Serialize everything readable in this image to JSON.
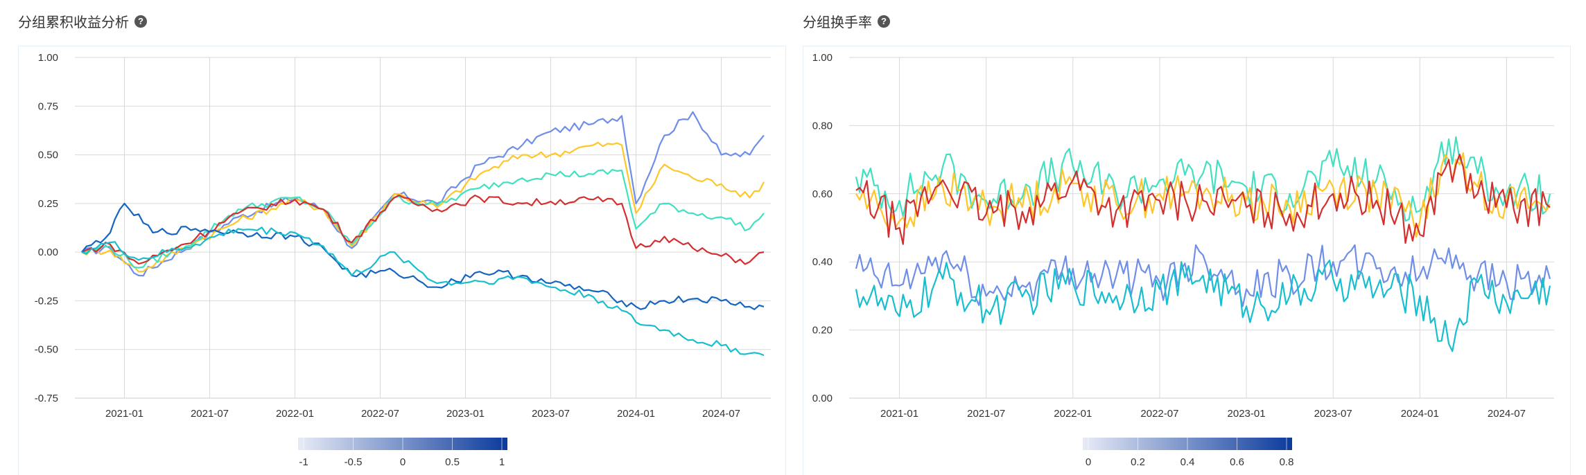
{
  "left_title": "分组累积收益分析",
  "right_title": "分组换手率",
  "colors": {
    "g1": "#1565c0",
    "g2": "#17becf",
    "g3": "#d32f2f",
    "g4": "#40e0c0",
    "g5": "#ffc629",
    "g6": "#6f8ee8",
    "colorbar_start": "#e8ebf6",
    "colorbar_end": "#0a3a9c"
  },
  "chart_data": [
    {
      "type": "line",
      "title": "分组累积收益分析",
      "xtick_labels": [
        "2021-01",
        "2021-07",
        "2022-01",
        "2022-07",
        "2023-01",
        "2023-07",
        "2024-01",
        "2024-07"
      ],
      "ytick_labels": [
        "1.00",
        "0.75",
        "0.50",
        "0.25",
        "0.00",
        "-0.25",
        "-0.50",
        "-0.75"
      ],
      "ylim": [
        -0.75,
        1.0
      ],
      "x_range": [
        "2020-10",
        "2024-10"
      ],
      "grid": true,
      "series": [
        {
          "color": "#6f8ee8",
          "x": [
            "2020-10",
            "2020-12",
            "2021-02",
            "2021-06",
            "2021-09",
            "2022-01",
            "2022-03",
            "2022-05",
            "2022-08",
            "2022-11",
            "2023-02",
            "2023-05",
            "2023-07",
            "2023-10",
            "2023-12",
            "2024-01",
            "2024-03",
            "2024-05",
            "2024-07",
            "2024-09",
            "2024-10"
          ],
          "values": [
            0.0,
            0.02,
            -0.12,
            0.05,
            0.18,
            0.28,
            0.22,
            0.02,
            0.3,
            0.25,
            0.45,
            0.55,
            0.62,
            0.66,
            0.7,
            0.25,
            0.6,
            0.72,
            0.5,
            0.5,
            0.6
          ]
        },
        {
          "color": "#ffc629",
          "x": [
            "2020-10",
            "2020-12",
            "2021-02",
            "2021-06",
            "2021-09",
            "2022-01",
            "2022-03",
            "2022-05",
            "2022-08",
            "2022-11",
            "2023-02",
            "2023-05",
            "2023-07",
            "2023-10",
            "2023-12",
            "2024-01",
            "2024-03",
            "2024-05",
            "2024-07",
            "2024-09",
            "2024-10"
          ],
          "values": [
            0.0,
            0.01,
            -0.1,
            0.05,
            0.16,
            0.27,
            0.22,
            0.03,
            0.3,
            0.23,
            0.4,
            0.5,
            0.5,
            0.55,
            0.55,
            0.2,
            0.45,
            0.38,
            0.35,
            0.28,
            0.36
          ]
        },
        {
          "color": "#40e0c0",
          "x": [
            "2020-10",
            "2020-12",
            "2021-02",
            "2021-06",
            "2021-09",
            "2022-01",
            "2022-03",
            "2022-05",
            "2022-08",
            "2022-11",
            "2023-02",
            "2023-05",
            "2023-07",
            "2023-10",
            "2023-12",
            "2024-01",
            "2024-03",
            "2024-05",
            "2024-07",
            "2024-09",
            "2024-10"
          ],
          "values": [
            0.0,
            0.03,
            -0.08,
            0.06,
            0.22,
            0.28,
            0.22,
            0.04,
            0.28,
            0.24,
            0.33,
            0.38,
            0.4,
            0.4,
            0.42,
            0.12,
            0.25,
            0.2,
            0.18,
            0.12,
            0.2
          ]
        },
        {
          "color": "#d32f2f",
          "x": [
            "2020-10",
            "2020-12",
            "2021-02",
            "2021-06",
            "2021-09",
            "2022-01",
            "2022-03",
            "2022-05",
            "2022-08",
            "2022-11",
            "2023-02",
            "2023-05",
            "2023-07",
            "2023-10",
            "2023-12",
            "2024-01",
            "2024-03",
            "2024-05",
            "2024-07",
            "2024-09",
            "2024-10"
          ],
          "values": [
            0.0,
            0.04,
            -0.06,
            0.07,
            0.2,
            0.27,
            0.22,
            0.05,
            0.28,
            0.22,
            0.28,
            0.25,
            0.26,
            0.27,
            0.25,
            0.02,
            0.08,
            0.02,
            -0.02,
            -0.05,
            0.0
          ]
        },
        {
          "color": "#1565c0",
          "x": [
            "2020-10",
            "2020-12",
            "2021-01",
            "2021-03",
            "2021-06",
            "2021-09",
            "2022-01",
            "2022-03",
            "2022-05",
            "2022-08",
            "2022-11",
            "2023-02",
            "2023-05",
            "2023-07",
            "2023-10",
            "2023-12",
            "2024-01",
            "2024-03",
            "2024-05",
            "2024-07",
            "2024-09",
            "2024-10"
          ],
          "values": [
            0.0,
            0.1,
            0.25,
            0.1,
            0.12,
            0.1,
            0.08,
            0.02,
            -0.12,
            -0.1,
            -0.18,
            -0.1,
            -0.12,
            -0.16,
            -0.2,
            -0.25,
            -0.28,
            -0.25,
            -0.24,
            -0.25,
            -0.28,
            -0.28
          ]
        },
        {
          "color": "#17becf",
          "x": [
            "2020-10",
            "2020-12",
            "2021-02",
            "2021-06",
            "2021-09",
            "2022-01",
            "2022-03",
            "2022-05",
            "2022-08",
            "2022-11",
            "2023-02",
            "2023-05",
            "2023-07",
            "2023-10",
            "2023-12",
            "2024-01",
            "2024-03",
            "2024-05",
            "2024-07",
            "2024-09",
            "2024-10"
          ],
          "values": [
            0.0,
            0.05,
            -0.04,
            0.04,
            0.12,
            0.1,
            0.03,
            -0.12,
            0.0,
            -0.16,
            -0.15,
            -0.13,
            -0.18,
            -0.23,
            -0.3,
            -0.36,
            -0.4,
            -0.45,
            -0.48,
            -0.52,
            -0.53
          ]
        }
      ]
    },
    {
      "type": "line",
      "title": "分组换手率",
      "xtick_labels": [
        "2021-01",
        "2021-07",
        "2022-01",
        "2022-07",
        "2023-01",
        "2023-07",
        "2024-01",
        "2024-07"
      ],
      "ytick_labels": [
        "1.00",
        "0.80",
        "0.60",
        "0.40",
        "0.20",
        "0.00"
      ],
      "ylim": [
        0,
        1.0
      ],
      "x_range": [
        "2020-10",
        "2024-10"
      ],
      "grid": true,
      "series": [
        {
          "color": "#40e0c0",
          "x": [
            "2020-10",
            "2021-01",
            "2021-04",
            "2021-07",
            "2021-10",
            "2022-01",
            "2022-04",
            "2022-07",
            "2022-10",
            "2023-01",
            "2023-04",
            "2023-07",
            "2023-10",
            "2024-01",
            "2024-03",
            "2024-05",
            "2024-07",
            "2024-10"
          ],
          "values": [
            0.65,
            0.58,
            0.68,
            0.58,
            0.62,
            0.68,
            0.6,
            0.64,
            0.66,
            0.62,
            0.6,
            0.68,
            0.64,
            0.55,
            0.76,
            0.66,
            0.6,
            0.6
          ]
        },
        {
          "color": "#ffc629",
          "x": [
            "2020-10",
            "2021-01",
            "2021-04",
            "2021-07",
            "2021-10",
            "2022-01",
            "2022-04",
            "2022-07",
            "2022-10",
            "2023-01",
            "2023-04",
            "2023-07",
            "2023-10",
            "2024-01",
            "2024-03",
            "2024-05",
            "2024-07",
            "2024-10"
          ],
          "values": [
            0.6,
            0.52,
            0.62,
            0.56,
            0.58,
            0.63,
            0.57,
            0.6,
            0.6,
            0.58,
            0.56,
            0.62,
            0.6,
            0.52,
            0.7,
            0.62,
            0.58,
            0.57
          ]
        },
        {
          "color": "#d32f2f",
          "x": [
            "2020-10",
            "2021-01",
            "2021-04",
            "2021-07",
            "2021-10",
            "2022-01",
            "2022-04",
            "2022-07",
            "2022-10",
            "2023-01",
            "2023-04",
            "2023-07",
            "2023-10",
            "2024-01",
            "2024-03",
            "2024-05",
            "2024-07",
            "2024-10"
          ],
          "values": [
            0.61,
            0.5,
            0.64,
            0.54,
            0.56,
            0.64,
            0.55,
            0.58,
            0.58,
            0.56,
            0.54,
            0.6,
            0.58,
            0.48,
            0.7,
            0.6,
            0.56,
            0.56
          ]
        },
        {
          "color": "#6f8ee8",
          "x": [
            "2020-10",
            "2021-01",
            "2021-04",
            "2021-07",
            "2021-10",
            "2022-01",
            "2022-04",
            "2022-07",
            "2022-10",
            "2023-01",
            "2023-04",
            "2023-07",
            "2023-10",
            "2024-01",
            "2024-03",
            "2024-05",
            "2024-07",
            "2024-10"
          ],
          "values": [
            0.38,
            0.33,
            0.42,
            0.3,
            0.34,
            0.38,
            0.36,
            0.34,
            0.42,
            0.32,
            0.36,
            0.4,
            0.38,
            0.36,
            0.44,
            0.36,
            0.34,
            0.35
          ]
        },
        {
          "color": "#17becf",
          "x": [
            "2020-10",
            "2021-01",
            "2021-04",
            "2021-07",
            "2021-10",
            "2022-01",
            "2022-04",
            "2022-07",
            "2022-10",
            "2023-01",
            "2023-04",
            "2023-07",
            "2023-10",
            "2024-01",
            "2024-03",
            "2024-05",
            "2024-07",
            "2024-10"
          ],
          "values": [
            0.32,
            0.24,
            0.35,
            0.26,
            0.3,
            0.34,
            0.3,
            0.32,
            0.36,
            0.27,
            0.3,
            0.35,
            0.32,
            0.3,
            0.16,
            0.34,
            0.28,
            0.33
          ]
        }
      ]
    }
  ],
  "colorbars": [
    {
      "tick_labels": [
        "-1",
        "-0.5",
        "0",
        "0.5",
        "1"
      ]
    },
    {
      "tick_labels": [
        "0",
        "0.2",
        "0.4",
        "0.6",
        "0.8"
      ]
    }
  ]
}
